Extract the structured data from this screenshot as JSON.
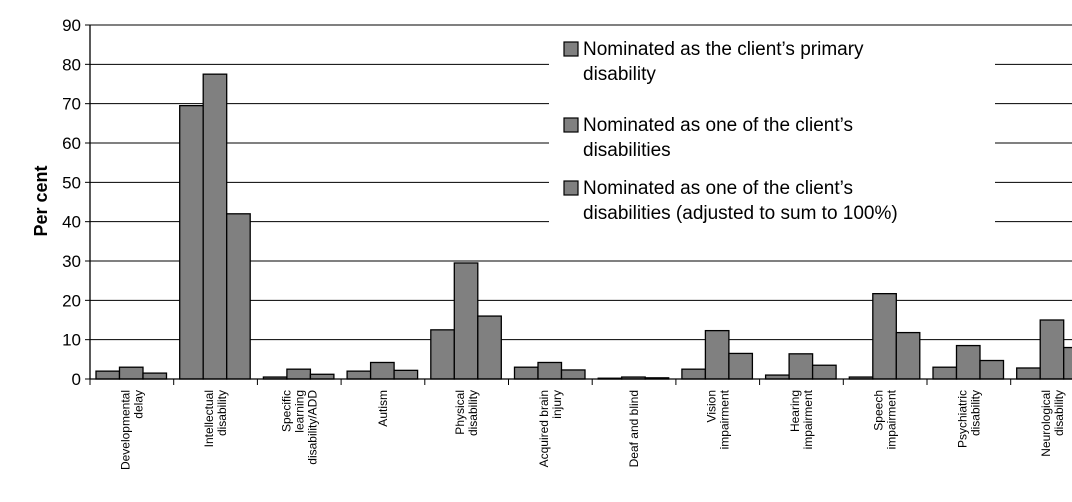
{
  "chart_data": {
    "type": "bar",
    "title": "",
    "xlabel": "",
    "ylabel": "Per cent",
    "ylim": [
      0,
      90
    ],
    "yticks": [
      0,
      10,
      20,
      30,
      40,
      50,
      60,
      70,
      80,
      90
    ],
    "grid": true,
    "legend_position": "top-right",
    "bar_color": "#808080",
    "categories": [
      [
        "Developmental",
        "delay"
      ],
      [
        "Intellectual",
        "disability"
      ],
      [
        "Specific",
        "learning",
        "disability/ADD"
      ],
      [
        "Autism"
      ],
      [
        "Physical",
        "disability"
      ],
      [
        "Acquired brain",
        "injury"
      ],
      [
        "Deaf and blind"
      ],
      [
        "Vision",
        "impairment"
      ],
      [
        "Hearing",
        "impairment"
      ],
      [
        "Speech",
        "impairment"
      ],
      [
        "Psychiatric",
        "disability"
      ],
      [
        "Neurological",
        "disability"
      ]
    ],
    "series": [
      {
        "name": [
          "Nominated as the client’s primary",
          "disability"
        ],
        "values": [
          2.0,
          69.5,
          0.5,
          2.0,
          12.5,
          3.0,
          0.2,
          2.5,
          1.0,
          0.5,
          3.0,
          2.8
        ]
      },
      {
        "name": [
          "Nominated as one of the client’s",
          "disabilities"
        ],
        "values": [
          3.0,
          77.5,
          2.5,
          4.2,
          29.5,
          4.2,
          0.5,
          12.3,
          6.4,
          21.7,
          8.5,
          15.0
        ]
      },
      {
        "name": [
          "Nominated as one of the client’s",
          "disabilities (adjusted to sum to 100%)"
        ],
        "values": [
          1.5,
          42.0,
          1.2,
          2.2,
          16.0,
          2.3,
          0.3,
          6.5,
          3.5,
          11.8,
          4.7,
          8.0
        ]
      }
    ]
  }
}
